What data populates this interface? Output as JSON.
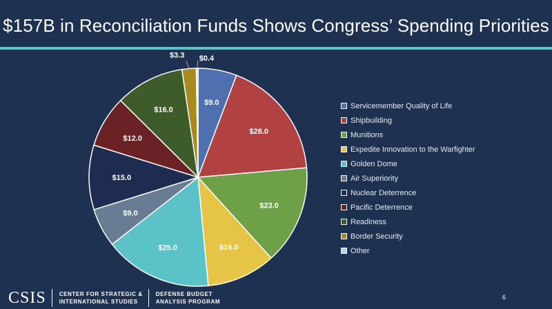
{
  "title": "$157B in Reconciliation Funds Shows Congress’ Spending Priorities",
  "chart_data": {
    "type": "pie",
    "title": "$157B in Reconciliation Funds Shows Congress’ Spending Priorities",
    "unit": "$B",
    "legend_position": "right",
    "start_angle_deg": 0,
    "direction": "clockwise",
    "slices": [
      {
        "label": "Servicemember Quality of Life",
        "value": 9.0,
        "display": "$9.0",
        "color": "#4f6fae"
      },
      {
        "label": "Shipbuilding",
        "value": 28.0,
        "display": "$28.0",
        "color": "#b24142"
      },
      {
        "label": "Munitions",
        "value": 23.0,
        "display": "$23.0",
        "color": "#6ea047"
      },
      {
        "label": "Expedite Innovation to the Warfighter",
        "value": 16.0,
        "display": "$16.0",
        "color": "#e6c445"
      },
      {
        "label": "Golden Dome",
        "value": 25.0,
        "display": "$25.0",
        "color": "#5bc3c7"
      },
      {
        "label": "Air Superiority",
        "value": 9.0,
        "display": "$9.0",
        "color": "#687c93"
      },
      {
        "label": "Nuclear Deterrence",
        "value": 15.0,
        "display": "$15.0",
        "color": "#1f2c52"
      },
      {
        "label": "Pacific Deterrence",
        "value": 12.0,
        "display": "$12.0",
        "color": "#6a2224"
      },
      {
        "label": "Readiness",
        "value": 16.0,
        "display": "$16.0",
        "color": "#3e5c2a"
      },
      {
        "label": "Border Security",
        "value": 3.3,
        "display": "$3.3",
        "color": "#a88a1e"
      },
      {
        "label": "Other",
        "value": 0.4,
        "display": "$0.4",
        "color": "#a9dde1"
      }
    ]
  },
  "footer": {
    "logo": "CSIS",
    "org_line1": "CENTER FOR STRATEGIC &",
    "org_line2": "INTERNATIONAL STUDIES",
    "program_line1": "DEFENSE BUDGET",
    "program_line2": "ANALYSIS PROGRAM",
    "page_number": "6"
  }
}
